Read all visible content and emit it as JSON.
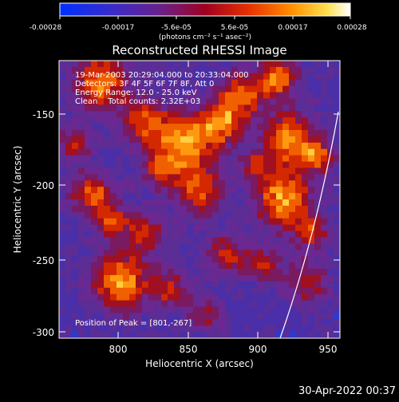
{
  "colorbar": {
    "tick_labels": [
      "-0.00028",
      "-0.00017",
      "-5.6e-05",
      "5.6e-05",
      "0.00017",
      "0.00028"
    ],
    "units": "(photons cm⁻² s⁻¹ asec⁻²)",
    "colors": [
      "#0033ff",
      "#4a2a9a",
      "#8a0040",
      "#d22a00",
      "#ff8800",
      "#ffe84a",
      "#ffffff"
    ]
  },
  "title": "Reconstructed RHESSI Image",
  "info_lines": [
    "19-Mar-2003 20:29:04.000 to 20:33:04.000",
    "Detectors: 3F 4F 5F 6F 7F 8F, Att 0",
    "Energy Range: 12.0 - 25.0 keV",
    "Clean    Total counts: 2.32E+03"
  ],
  "position_label": "Position of Peak = [801,-267]",
  "x_axis": {
    "label": "Heliocentric X (arcsec)",
    "ticks": [
      "800",
      "850",
      "900",
      "950"
    ]
  },
  "y_axis": {
    "label": "Heliocentric Y (arcsec)",
    "ticks": [
      "-150",
      "-200",
      "-250",
      "-300"
    ]
  },
  "timestamp": "30-Apr-2022 00:37"
}
